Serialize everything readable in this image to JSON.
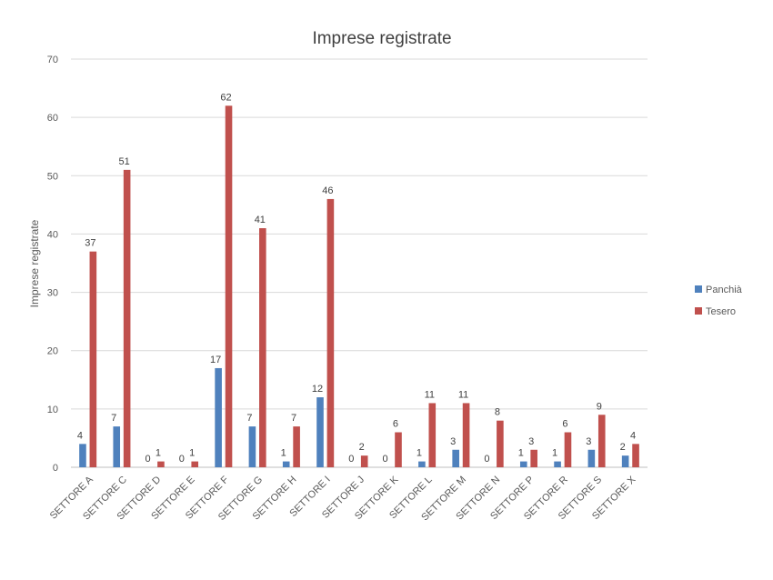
{
  "chart_data": {
    "type": "bar",
    "title": "Imprese registrate",
    "xlabel": "",
    "ylabel": "Imprese registrate",
    "ylim": [
      0,
      70
    ],
    "yticks": [
      0,
      10,
      20,
      30,
      40,
      50,
      60,
      70
    ],
    "grid": true,
    "legend_position": "right",
    "categories": [
      "SETTORE A",
      "SETTORE C",
      "SETTORE D",
      "SETTORE E",
      "SETTORE F",
      "SETTORE G",
      "SETTORE H",
      "SETTORE I",
      "SETTORE J",
      "SETTORE K",
      "SETTORE L",
      "SETTORE M",
      "SETTORE N",
      "SETTORE P",
      "SETTORE R",
      "SETTORE S",
      "SETTORE X"
    ],
    "series": [
      {
        "name": "Panchià",
        "color": "#4f81bd",
        "values": [
          4,
          7,
          0,
          0,
          17,
          7,
          1,
          12,
          0,
          0,
          1,
          3,
          0,
          1,
          1,
          3,
          2
        ]
      },
      {
        "name": "Tesero",
        "color": "#c0504d",
        "values": [
          37,
          51,
          1,
          1,
          62,
          41,
          7,
          46,
          2,
          6,
          11,
          11,
          8,
          3,
          6,
          9,
          4
        ]
      }
    ]
  }
}
